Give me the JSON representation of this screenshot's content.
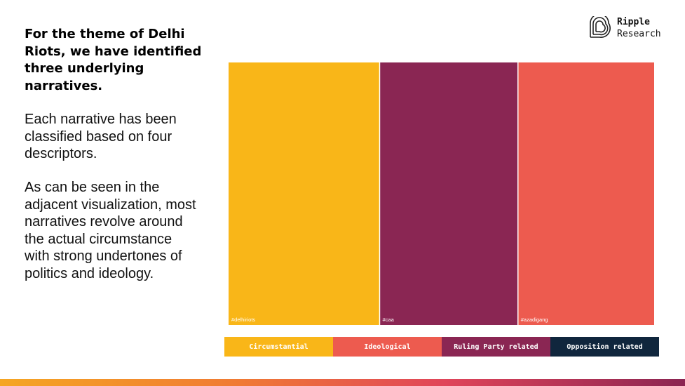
{
  "brand": {
    "line1": "Ripple",
    "line2": "Research"
  },
  "intro": {
    "heading": "For the theme of Delhi Riots, we have identified three underlying narratives.",
    "para1": "Each narrative has been classified based on four descriptors.",
    "para2": "As can be seen in the adjacent visualization, most narratives revolve around the actual circumstance with strong undertones of politics and ideology."
  },
  "chart_data": {
    "type": "treemap",
    "items": [
      {
        "label": "#delhiriots",
        "value": 35.5,
        "category": "Circumstantial",
        "color": "#f9b618"
      },
      {
        "label": "#caa",
        "value": 32.5,
        "category": "Ruling Party related",
        "color": "#8a2653"
      },
      {
        "label": "#azadigang",
        "value": 32.0,
        "category": "Ideological",
        "color": "#ed5b4f"
      }
    ],
    "legend": [
      {
        "label": "Circumstantial",
        "color": "#f9b618"
      },
      {
        "label": "Ideological",
        "color": "#ed5b4f"
      },
      {
        "label": "Ruling Party related",
        "color": "#8a2653"
      },
      {
        "label": "Opposition related",
        "color": "#10263d"
      }
    ]
  }
}
